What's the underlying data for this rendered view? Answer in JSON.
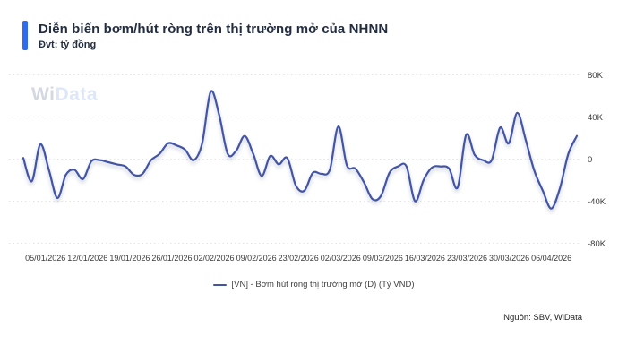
{
  "header": {
    "title": "Diễn biến bơm/hút ròng trên thị trường mở của NHNN",
    "unit": "Đvt: tỷ đồng"
  },
  "watermark": {
    "wi": "Wi",
    "data": "Data"
  },
  "legend": {
    "label": "[VN] - Bơm hút ròng thị trường mở (D) (Tỷ VND)"
  },
  "footer": {
    "source": "Nguồn: SBV, WiData"
  },
  "colors": {
    "accent_bar": "#2e6bf2",
    "line": "#4254a8",
    "grid": "#e4e4e4",
    "title_text": "#232d42",
    "tick_text": "#3b3b3b"
  },
  "chart_data": {
    "type": "line",
    "title": "Diễn biến bơm/hút ròng trên thị trường mở của NHNN",
    "ylabel": "tỷ đồng",
    "xlabel": "",
    "grid": "horizontal-dotted",
    "legend_position": "bottom-center",
    "y_axis_side": "right",
    "ylim": [
      -80000,
      80000
    ],
    "y_tick_values": [
      80000,
      40000,
      0,
      -40000,
      -80000
    ],
    "y_tick_labels": [
      "80K",
      "40K",
      "0",
      "-40K",
      "-80K"
    ],
    "x_tick_labels": [
      "05/01/2026",
      "12/01/2026",
      "19/01/2026",
      "26/01/2026",
      "02/02/2026",
      "09/02/2026",
      "23/02/2026",
      "02/03/2026",
      "09/03/2026",
      "16/03/2026",
      "23/03/2026",
      "30/03/2026",
      "06/04/2026"
    ],
    "x_note": "daily observations, one x tick per week (week of 16/02 absent)",
    "series": [
      {
        "name": "[VN] - Bơm hút ròng thị trường mở (D) (Tỷ VND)",
        "color": "#4254a8",
        "values": [
          1000,
          -21000,
          14000,
          -10000,
          -37000,
          -15000,
          -10000,
          -19000,
          -2000,
          -1000,
          -3000,
          -5000,
          -7000,
          -15000,
          -14000,
          -1000,
          5000,
          15000,
          13000,
          9000,
          -1000,
          15000,
          64000,
          42000,
          5000,
          8000,
          22000,
          5000,
          -16000,
          3000,
          -5000,
          1000,
          -25000,
          -30000,
          -13000,
          -14000,
          -10000,
          31000,
          -6000,
          -9000,
          -22000,
          -38000,
          -35000,
          -13000,
          -7000,
          -7000,
          -40000,
          -20000,
          -8000,
          -7000,
          -9000,
          -27000,
          23000,
          4000,
          -1000,
          -1000,
          30000,
          15000,
          44000,
          18000,
          -11000,
          -30000,
          -47000,
          -28000,
          5000,
          22000
        ]
      }
    ]
  }
}
